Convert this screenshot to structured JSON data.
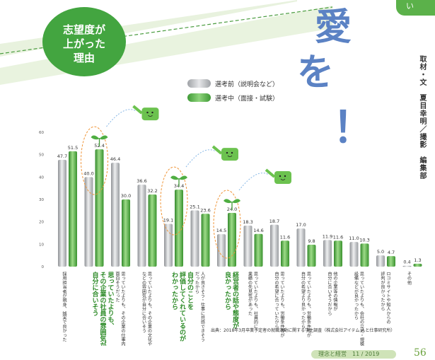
{
  "header": {
    "bubble_lines": [
      "志望度が",
      "上がった",
      "理由"
    ],
    "title_chars": [
      "愛",
      "を",
      "！"
    ],
    "tag": "い",
    "credit": "取材・文　夏目幸明／撮影　編集部"
  },
  "legend": [
    {
      "label": "選考前（説明会など）",
      "color": "#b8babd"
    },
    {
      "label": "選考中（面接・試験）",
      "color": "#57b04a"
    }
  ],
  "source": "出典：2018年3月卒業予定者の就職活動に関する学生調査（株式会社アイテム 人と仕事研究所）",
  "footer": {
    "magazine": "理念と経営　11 / 2019",
    "page": "56"
  },
  "chart_data": {
    "type": "bar",
    "ylim": [
      0,
      60
    ],
    "yticks": [
      0,
      10,
      20,
      30,
      40,
      50,
      60
    ],
    "categories": [
      "採用担当者が親身、誠実で良かった",
      "思っていたよりも、その企業の社員の雰囲気が自分に合いそう",
      "思っていたよりも、その企業の社員の雰囲気が自分に合いそう",
      "思っていたよりも、その企業の文化や価値観などの雰囲気が自分に合いそう",
      "自分のことを評価してくれているのがわかったから",
      "人が良さそう・仕事内容に共感できそうだったから",
      "経営者の話や態度が良かったから",
      "思っていたよりも、社員的に業績の先見性があった",
      "思っていたよりも、労働条件等が自分の希望に合っていたから",
      "思っていたよりも、労働条件等が自分の希望に合っていたから",
      "社外の業界などの将来性・成長性がわかったから",
      "思っていたよりも、会社の立地・規模・設備などが良かったから",
      "ロコミサイトや知人からの評判が良かったから",
      "その他"
    ],
    "category_labels": [
      "採用担当者が親身、誠実で良かった",
      "",
      "思っていたよりも、その企業の仕事内容が\n面白そうだった",
      "思っていたよりも、その企業の文化や価値観\nなどの雰囲気が自分に合いそう",
      "",
      "人が良さそう・仕事に共感できそう\nだったから",
      "",
      "思っていたよりも、社員的に\n業績の先見性があった",
      "思っていたよりも、労働条件等が\n自分の希望に合っていたから",
      "思っていたよりも、労働条件等が\n自分の希望より良かったから",
      "他の企業等の情報が\n自分に合いそうだから",
      "思っていたよりも、会社の立地・規模・\n設備などが良かったから",
      "ロコミサイトや知人からの\n評判が良かったから",
      "その他"
    ],
    "series": [
      {
        "name": "選考前（説明会など）",
        "values": [
          47.7,
          40.0,
          46.4,
          36.6,
          19.1,
          25.1,
          14.5,
          18.3,
          18.7,
          17.0,
          11.9,
          11.0,
          5.0,
          0.4
        ]
      },
      {
        "name": "選考中（面接・試験）",
        "values": [
          51.5,
          52.4,
          30.0,
          32.2,
          34.4,
          23.6,
          24.0,
          14.6,
          11.6,
          9.8,
          11.6,
          10.3,
          4.7,
          1.3
        ]
      }
    ],
    "highlights": [
      {
        "index": 1,
        "text": "思っていたよりも、\nその企業の社員の雰囲気が\n自分に合いそう"
      },
      {
        "index": 4,
        "text": "自分のことを\n評価してくれているのが\nわかったから"
      },
      {
        "index": 6,
        "text": "経営者の話や態度が\n良かったから"
      }
    ]
  }
}
